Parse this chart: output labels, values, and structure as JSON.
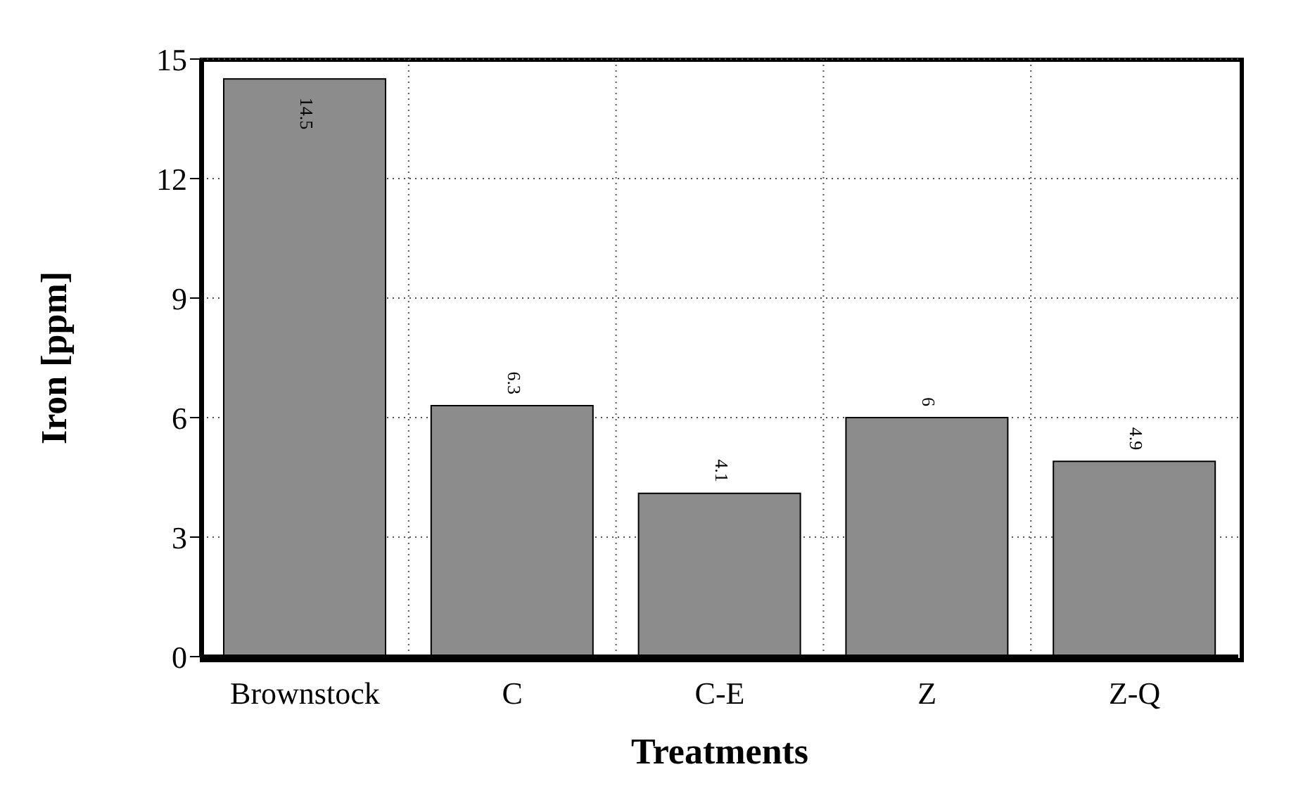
{
  "chart_data": {
    "type": "bar",
    "xlabel": "Treatments",
    "ylabel": "Iron [ppm]",
    "categories": [
      "Brownstock",
      "C",
      "C-E",
      "Z",
      "Z-Q"
    ],
    "values": [
      14.5,
      6.3,
      4.1,
      6,
      4.9
    ],
    "color": "#8c8c8c",
    "data_labels": true,
    "ylim": [
      0,
      15
    ],
    "yticks": [
      0,
      3,
      6,
      9,
      12,
      15
    ],
    "grid": true
  }
}
